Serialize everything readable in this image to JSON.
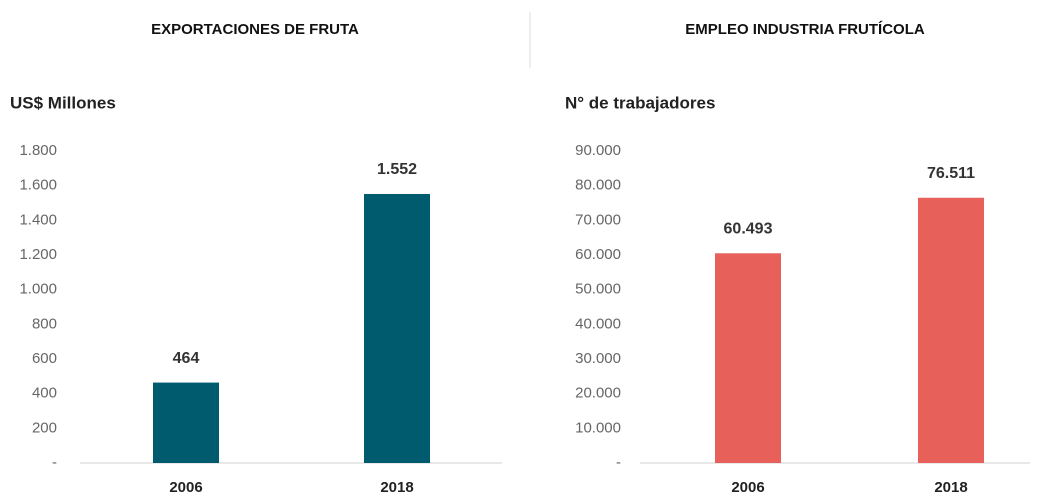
{
  "chart_data": [
    {
      "type": "bar",
      "title": "EXPORTACIONES DE FRUTA",
      "y_label": "US$ Millones",
      "categories": [
        "2006",
        "2018"
      ],
      "values": [
        464,
        1552
      ],
      "value_labels": [
        "464",
        "1.552"
      ],
      "color": "#015b6f",
      "ylim": [
        0,
        1800
      ],
      "yticks": [
        {
          "value": 0,
          "label": "-"
        },
        200,
        400,
        600,
        800,
        {
          "value": 1000,
          "label": "1.000"
        },
        {
          "value": 1200,
          "label": "1.200"
        },
        {
          "value": 1400,
          "label": "1.400"
        },
        {
          "value": 1600,
          "label": "1.600"
        },
        {
          "value": 1800,
          "label": "1.800"
        }
      ],
      "grid": false
    },
    {
      "type": "bar",
      "title": "EMPLEO INDUSTRIA FRUTÍCOLA",
      "y_label": "N° de trabajadores",
      "categories": [
        "2006",
        "2018"
      ],
      "values": [
        60493,
        76511
      ],
      "value_labels": [
        "60.493",
        "76.511"
      ],
      "color": "#e8605a",
      "ylim": [
        0,
        90000
      ],
      "yticks": [
        {
          "value": 0,
          "label": "-"
        },
        {
          "value": 10000,
          "label": "10.000"
        },
        {
          "value": 20000,
          "label": "20.000"
        },
        {
          "value": 30000,
          "label": "30.000"
        },
        {
          "value": 40000,
          "label": "40.000"
        },
        {
          "value": 50000,
          "label": "50.000"
        },
        {
          "value": 60000,
          "label": "60.000"
        },
        {
          "value": 70000,
          "label": "70.000"
        },
        {
          "value": 80000,
          "label": "80.000"
        },
        {
          "value": 90000,
          "label": "90.000"
        }
      ],
      "grid": false
    }
  ]
}
